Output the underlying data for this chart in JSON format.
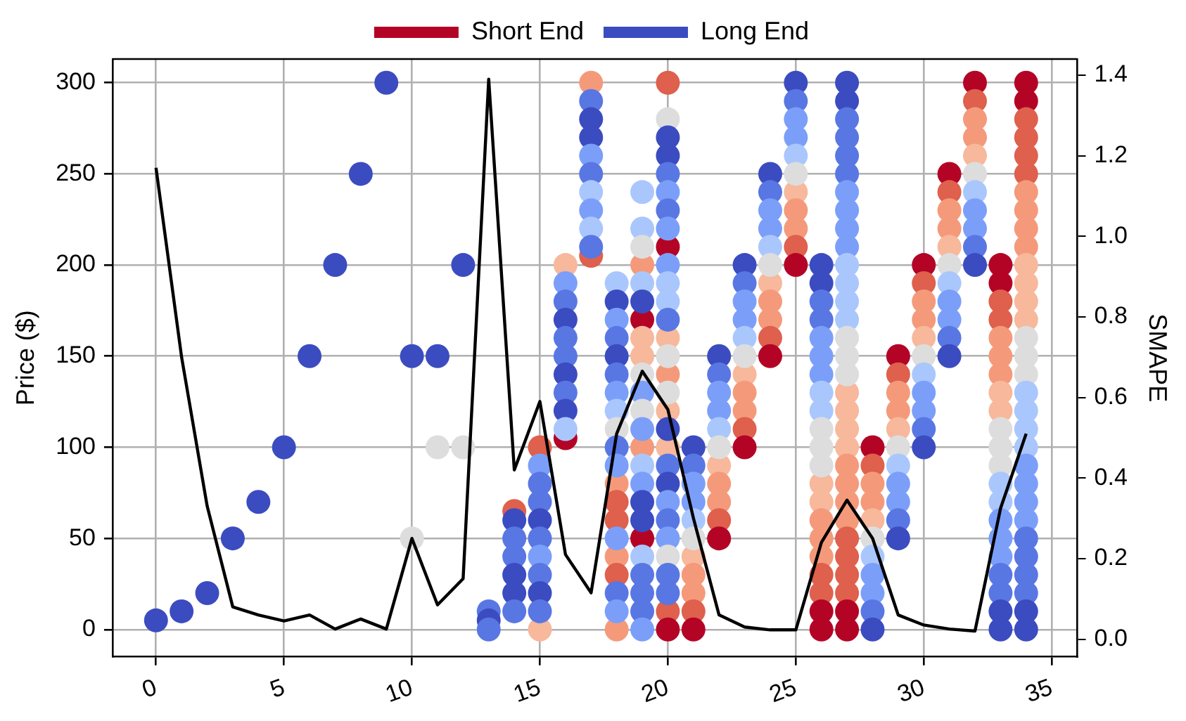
{
  "chart_data": {
    "type": "scatter",
    "ylabel": "Price ($)",
    "y2label": "SMAPE",
    "legend": "top",
    "grid": true,
    "marker": "circle",
    "xlim": [
      -1.7,
      36
    ],
    "xticks": [
      0,
      5,
      10,
      15,
      20,
      25,
      30,
      35
    ],
    "ylim": [
      -15,
      313
    ],
    "yticks": [
      0,
      50,
      100,
      150,
      200,
      250,
      300
    ],
    "y2lim": [
      -0.044,
      1.44
    ],
    "y2ticks": [
      {
        "value": 0,
        "label": "0.0"
      },
      {
        "value": 0.2,
        "label": "0.2"
      },
      {
        "value": 0.4,
        "label": "0.4"
      },
      {
        "value": 0.6,
        "label": "0.6"
      },
      {
        "value": 0.8,
        "label": "0.8"
      },
      {
        "value": 1,
        "label": "1.0"
      },
      {
        "value": 1.2,
        "label": "1.2"
      },
      {
        "value": 1.4,
        "label": "1.4"
      }
    ],
    "series": [
      {
        "name": "Short End",
        "color": "#b40426",
        "x": [
          14,
          15,
          15,
          16,
          16,
          17,
          17,
          18,
          18,
          18,
          18,
          18,
          18,
          19,
          19,
          19,
          19,
          19,
          19,
          20,
          20,
          20,
          20,
          20,
          20,
          20,
          20,
          21,
          21,
          21,
          21,
          21,
          22,
          22,
          22,
          22,
          22,
          23,
          23,
          23,
          23,
          23,
          24,
          24,
          24,
          24,
          24,
          25,
          25,
          25,
          25,
          25,
          26,
          26,
          26,
          26,
          26,
          26,
          26,
          26,
          26,
          27,
          27,
          27,
          27,
          27,
          27,
          27,
          27,
          27,
          27,
          27,
          27,
          27,
          27,
          28,
          28,
          28,
          28,
          28,
          29,
          29,
          29,
          29,
          29,
          30,
          30,
          30,
          30,
          30,
          31,
          31,
          31,
          31,
          31,
          32,
          32,
          32,
          32,
          32,
          33,
          33,
          33,
          33,
          33,
          33,
          33,
          33,
          33,
          34,
          34,
          34,
          34,
          34,
          34,
          34,
          34,
          34,
          34,
          34,
          34,
          34,
          34
        ],
        "values": [
          65,
          100,
          0,
          200,
          105,
          300,
          205,
          80,
          70,
          60,
          40,
          30,
          0,
          200,
          170,
          160,
          150,
          100,
          50,
          300,
          210,
          160,
          140,
          120,
          100,
          10,
          0,
          40,
          30,
          20,
          10,
          0,
          90,
          80,
          70,
          60,
          50,
          140,
          130,
          120,
          110,
          100,
          190,
          180,
          170,
          160,
          150,
          240,
          230,
          220,
          210,
          200,
          80,
          70,
          60,
          50,
          40,
          30,
          20,
          10,
          0,
          130,
          120,
          110,
          100,
          90,
          80,
          70,
          60,
          50,
          40,
          30,
          20,
          10,
          0,
          100,
          90,
          80,
          70,
          60,
          150,
          140,
          130,
          120,
          110,
          200,
          190,
          180,
          170,
          160,
          250,
          240,
          230,
          220,
          210,
          300,
          290,
          280,
          270,
          260,
          200,
          190,
          180,
          170,
          160,
          150,
          140,
          130,
          120,
          300,
          290,
          280,
          270,
          260,
          250,
          240,
          230,
          220,
          210,
          200,
          190,
          180,
          170
        ],
        "colors": [
          "#de604d",
          "#de604d",
          "#f7b89c",
          "#f7b89c",
          "#b40426",
          "#f49a7b",
          "#de604d",
          "#f49a7b",
          "#de604d",
          "#de604d",
          "#f49a7b",
          "#de604d",
          "#f49a7b",
          "#f49a7b",
          "#b40426",
          "#f7b89c",
          "#f7b89c",
          "#f49a7b",
          "#b40426",
          "#de604d",
          "#b40426",
          "#f7b89c",
          "#f49a7b",
          "#f7b89c",
          "#f7b89c",
          "#de604d",
          "#b40426",
          "#f7b89c",
          "#f49a7b",
          "#f49a7b",
          "#de604d",
          "#b40426",
          "#f7b89c",
          "#f49a7b",
          "#f49a7b",
          "#de604d",
          "#b40426",
          "#f7b89c",
          "#f49a7b",
          "#f49a7b",
          "#de604d",
          "#b40426",
          "#f7b89c",
          "#f49a7b",
          "#f49a7b",
          "#de604d",
          "#b40426",
          "#f7b89c",
          "#f49a7b",
          "#f49a7b",
          "#de604d",
          "#b40426",
          "#f7b89c",
          "#f7b89c",
          "#f49a7b",
          "#f49a7b",
          "#f49a7b",
          "#de604d",
          "#de604d",
          "#b40426",
          "#b40426",
          "#f7b89c",
          "#f7b89c",
          "#f7b89c",
          "#f7b89c",
          "#f49a7b",
          "#f49a7b",
          "#f49a7b",
          "#f49a7b",
          "#de604d",
          "#de604d",
          "#de604d",
          "#de604d",
          "#b40426",
          "#b40426",
          "#b40426",
          "#de604d",
          "#f49a7b",
          "#f49a7b",
          "#f7b89c",
          "#b40426",
          "#de604d",
          "#f49a7b",
          "#f49a7b",
          "#f7b89c",
          "#b40426",
          "#de604d",
          "#f49a7b",
          "#f49a7b",
          "#f7b89c",
          "#b40426",
          "#de604d",
          "#f49a7b",
          "#f49a7b",
          "#f7b89c",
          "#b40426",
          "#de604d",
          "#f49a7b",
          "#f49a7b",
          "#f7b89c",
          "#b40426",
          "#b40426",
          "#de604d",
          "#de604d",
          "#f49a7b",
          "#f49a7b",
          "#f49a7b",
          "#f7b89c",
          "#f7b89c",
          "#b40426",
          "#b40426",
          "#de604d",
          "#de604d",
          "#de604d",
          "#de604d",
          "#f49a7b",
          "#f49a7b",
          "#f49a7b",
          "#f49a7b",
          "#f7b89c",
          "#f7b89c",
          "#f7b89c",
          "#f7b89c"
        ]
      },
      {
        "name": "Long End",
        "color": "#3b4cc0",
        "x": [
          0,
          1,
          2,
          3,
          4,
          5,
          6,
          7,
          8,
          9,
          10,
          10,
          11,
          11,
          12,
          12,
          13,
          13,
          13,
          14,
          14,
          14,
          14,
          14,
          14,
          15,
          15,
          15,
          15,
          15,
          15,
          15,
          15,
          15,
          16,
          16,
          16,
          16,
          16,
          16,
          16,
          16,
          16,
          17,
          17,
          17,
          17,
          17,
          17,
          17,
          17,
          17,
          18,
          18,
          18,
          18,
          18,
          18,
          18,
          18,
          18,
          18,
          18,
          18,
          18,
          18,
          19,
          19,
          19,
          19,
          19,
          19,
          19,
          19,
          19,
          19,
          19,
          19,
          19,
          19,
          19,
          19,
          19,
          19,
          20,
          20,
          20,
          20,
          20,
          20,
          20,
          20,
          20,
          20,
          20,
          20,
          20,
          20,
          20,
          20,
          20,
          20,
          20,
          20,
          20,
          20,
          21,
          21,
          21,
          21,
          21,
          21,
          22,
          22,
          22,
          22,
          22,
          22,
          23,
          23,
          23,
          23,
          23,
          23,
          24,
          24,
          24,
          24,
          24,
          24,
          25,
          25,
          25,
          25,
          25,
          25,
          26,
          26,
          26,
          26,
          26,
          26,
          26,
          26,
          26,
          26,
          26,
          26,
          27,
          27,
          27,
          27,
          27,
          27,
          27,
          27,
          27,
          27,
          27,
          27,
          27,
          27,
          27,
          27,
          27,
          28,
          28,
          28,
          28,
          28,
          28,
          29,
          29,
          29,
          29,
          29,
          29,
          30,
          30,
          30,
          30,
          30,
          30,
          31,
          31,
          31,
          31,
          31,
          31,
          32,
          32,
          32,
          32,
          32,
          32,
          33,
          33,
          33,
          33,
          33,
          33,
          33,
          33,
          33,
          33,
          33,
          33,
          34,
          34,
          34,
          34,
          34,
          34,
          34,
          34,
          34,
          34,
          34,
          34,
          34,
          34,
          34,
          34,
          34
        ],
        "values": [
          5,
          10,
          20,
          50,
          70,
          100,
          150,
          200,
          250,
          300,
          150,
          50,
          150,
          100,
          200,
          100,
          10,
          5,
          0,
          60,
          50,
          40,
          30,
          20,
          10,
          90,
          80,
          70,
          60,
          50,
          40,
          30,
          20,
          10,
          190,
          180,
          170,
          160,
          150,
          140,
          130,
          120,
          110,
          290,
          280,
          270,
          260,
          250,
          240,
          230,
          220,
          210,
          190,
          180,
          170,
          160,
          150,
          140,
          130,
          120,
          110,
          100,
          90,
          50,
          20,
          10,
          240,
          220,
          210,
          190,
          180,
          140,
          130,
          120,
          110,
          90,
          80,
          70,
          60,
          40,
          30,
          20,
          10,
          0,
          280,
          270,
          260,
          250,
          240,
          230,
          220,
          200,
          190,
          180,
          170,
          150,
          130,
          110,
          90,
          80,
          70,
          60,
          50,
          40,
          30,
          20,
          100,
          90,
          80,
          70,
          60,
          50,
          150,
          140,
          130,
          120,
          110,
          100,
          200,
          190,
          180,
          170,
          160,
          150,
          250,
          240,
          230,
          220,
          210,
          200,
          300,
          290,
          280,
          270,
          260,
          250,
          200,
          190,
          180,
          170,
          160,
          150,
          140,
          130,
          120,
          110,
          100,
          90,
          300,
          290,
          280,
          270,
          260,
          250,
          240,
          230,
          220,
          210,
          200,
          190,
          180,
          170,
          160,
          150,
          140,
          50,
          40,
          30,
          20,
          10,
          0,
          100,
          90,
          80,
          70,
          60,
          50,
          150,
          140,
          130,
          120,
          110,
          100,
          200,
          190,
          180,
          170,
          160,
          150,
          250,
          240,
          230,
          220,
          210,
          200,
          110,
          100,
          90,
          80,
          70,
          60,
          50,
          40,
          30,
          20,
          10,
          0,
          160,
          150,
          140,
          130,
          120,
          110,
          100,
          90,
          80,
          70,
          60,
          50,
          40,
          30,
          20,
          10,
          0
        ],
        "colors": [
          "#3b4cc0",
          "#3b4cc0",
          "#3b4cc0",
          "#3b4cc0",
          "#3b4cc0",
          "#3b4cc0",
          "#3b4cc0",
          "#3b4cc0",
          "#3b4cc0",
          "#3b4cc0",
          "#3b4cc0",
          "#dddddd",
          "#3b4cc0",
          "#dddddd",
          "#3b4cc0",
          "#dddddd",
          "#5977e3",
          "#3b4cc0",
          "#5977e3",
          "#3b4cc0",
          "#5977e3",
          "#5977e3",
          "#3b4cc0",
          "#3b4cc0",
          "#5977e3",
          "#7b9ff9",
          "#5977e3",
          "#5977e3",
          "#3b4cc0",
          "#5977e3",
          "#7b9ff9",
          "#5977e3",
          "#3b4cc0",
          "#5977e3",
          "#7b9ff9",
          "#5977e3",
          "#3b4cc0",
          "#5977e3",
          "#5977e3",
          "#3b4cc0",
          "#5977e3",
          "#3b4cc0",
          "#aac7fd",
          "#5977e3",
          "#3b4cc0",
          "#3b4cc0",
          "#7b9ff9",
          "#5977e3",
          "#aac7fd",
          "#7b9ff9",
          "#aac7fd",
          "#5977e3",
          "#aac7fd",
          "#3b4cc0",
          "#7b9ff9",
          "#5977e3",
          "#3b4cc0",
          "#5977e3",
          "#7b9ff9",
          "#aac7fd",
          "#dddddd",
          "#5977e3",
          "#7b9ff9",
          "#7b9ff9",
          "#5977e3",
          "#7b9ff9",
          "#aac7fd",
          "#aac7fd",
          "#dddddd",
          "#aac7fd",
          "#3b4cc0",
          "#dddddd",
          "#7b9ff9",
          "#dddddd",
          "#7b9ff9",
          "#aac7fd",
          "#7b9ff9",
          "#3b4cc0",
          "#3b4cc0",
          "#aac7fd",
          "#5977e3",
          "#5977e3",
          "#5977e3",
          "#7b9ff9",
          "#dddddd",
          "#3b4cc0",
          "#3b4cc0",
          "#5977e3",
          "#7b9ff9",
          "#5977e3",
          "#7b9ff9",
          "#7b9ff9",
          "#aac7fd",
          "#aac7fd",
          "#5977e3",
          "#dddddd",
          "#dddddd",
          "#3b4cc0",
          "#5977e3",
          "#3b4cc0",
          "#7b9ff9",
          "#5977e3",
          "#7b9ff9",
          "#dddddd",
          "#5977e3",
          "#5977e3",
          "#3b4cc0",
          "#5977e3",
          "#7b9ff9",
          "#7b9ff9",
          "#aac7fd",
          "#dddddd",
          "#3b4cc0",
          "#5977e3",
          "#7b9ff9",
          "#7b9ff9",
          "#aac7fd",
          "#dddddd",
          "#3b4cc0",
          "#5977e3",
          "#7b9ff9",
          "#7b9ff9",
          "#aac7fd",
          "#dddddd",
          "#3b4cc0",
          "#5977e3",
          "#7b9ff9",
          "#7b9ff9",
          "#aac7fd",
          "#dddddd",
          "#3b4cc0",
          "#5977e3",
          "#7b9ff9",
          "#7b9ff9",
          "#aac7fd",
          "#dddddd",
          "#3b4cc0",
          "#3b4cc0",
          "#5977e3",
          "#5977e3",
          "#7b9ff9",
          "#7b9ff9",
          "#7b9ff9",
          "#aac7fd",
          "#aac7fd",
          "#dddddd",
          "#dddddd",
          "#dddddd",
          "#3b4cc0",
          "#3b4cc0",
          "#5977e3",
          "#5977e3",
          "#5977e3",
          "#5977e3",
          "#7b9ff9",
          "#7b9ff9",
          "#7b9ff9",
          "#7b9ff9",
          "#aac7fd",
          "#aac7fd",
          "#aac7fd",
          "#aac7fd",
          "#dddddd",
          "#dddddd",
          "#dddddd",
          "#dddddd",
          "#aac7fd",
          "#7b9ff9",
          "#7b9ff9",
          "#5977e3",
          "#3b4cc0",
          "#dddddd",
          "#aac7fd",
          "#7b9ff9",
          "#7b9ff9",
          "#5977e3",
          "#3b4cc0",
          "#dddddd",
          "#aac7fd",
          "#7b9ff9",
          "#7b9ff9",
          "#5977e3",
          "#3b4cc0",
          "#dddddd",
          "#aac7fd",
          "#7b9ff9",
          "#7b9ff9",
          "#5977e3",
          "#3b4cc0",
          "#dddddd",
          "#aac7fd",
          "#7b9ff9",
          "#7b9ff9",
          "#5977e3",
          "#3b4cc0",
          "#dddddd",
          "#dddddd",
          "#dddddd",
          "#aac7fd",
          "#aac7fd",
          "#7b9ff9",
          "#7b9ff9",
          "#7b9ff9",
          "#5977e3",
          "#5977e3",
          "#3b4cc0",
          "#3b4cc0",
          "#dddddd",
          "#dddddd",
          "#dddddd",
          "#aac7fd",
          "#aac7fd",
          "#aac7fd",
          "#aac7fd",
          "#7b9ff9",
          "#7b9ff9",
          "#7b9ff9",
          "#7b9ff9",
          "#5977e3",
          "#5977e3",
          "#5977e3",
          "#5977e3",
          "#3b4cc0",
          "#3b4cc0"
        ]
      },
      {
        "type": "line",
        "axis": "y2",
        "color": "#000000",
        "marker": "none",
        "x": [
          0,
          1,
          2,
          3,
          4,
          5,
          6,
          7,
          8,
          9,
          10,
          11,
          12,
          13,
          14,
          15,
          16,
          17,
          18,
          19,
          20,
          21,
          22,
          23,
          24,
          25,
          26,
          27,
          28,
          29,
          30,
          31,
          32,
          33,
          34
        ],
        "values": [
          1.17,
          0.7,
          0.33,
          0.08,
          0.06,
          0.045,
          0.06,
          0.025,
          0.05,
          0.025,
          0.25,
          0.085,
          0.15,
          1.39,
          0.42,
          0.59,
          0.21,
          0.115,
          0.51,
          0.665,
          0.57,
          0.3,
          0.06,
          0.03,
          0.023,
          0.023,
          0.24,
          0.345,
          0.25,
          0.06,
          0.035,
          0.025,
          0.02,
          0.325,
          0.51
        ]
      }
    ]
  }
}
